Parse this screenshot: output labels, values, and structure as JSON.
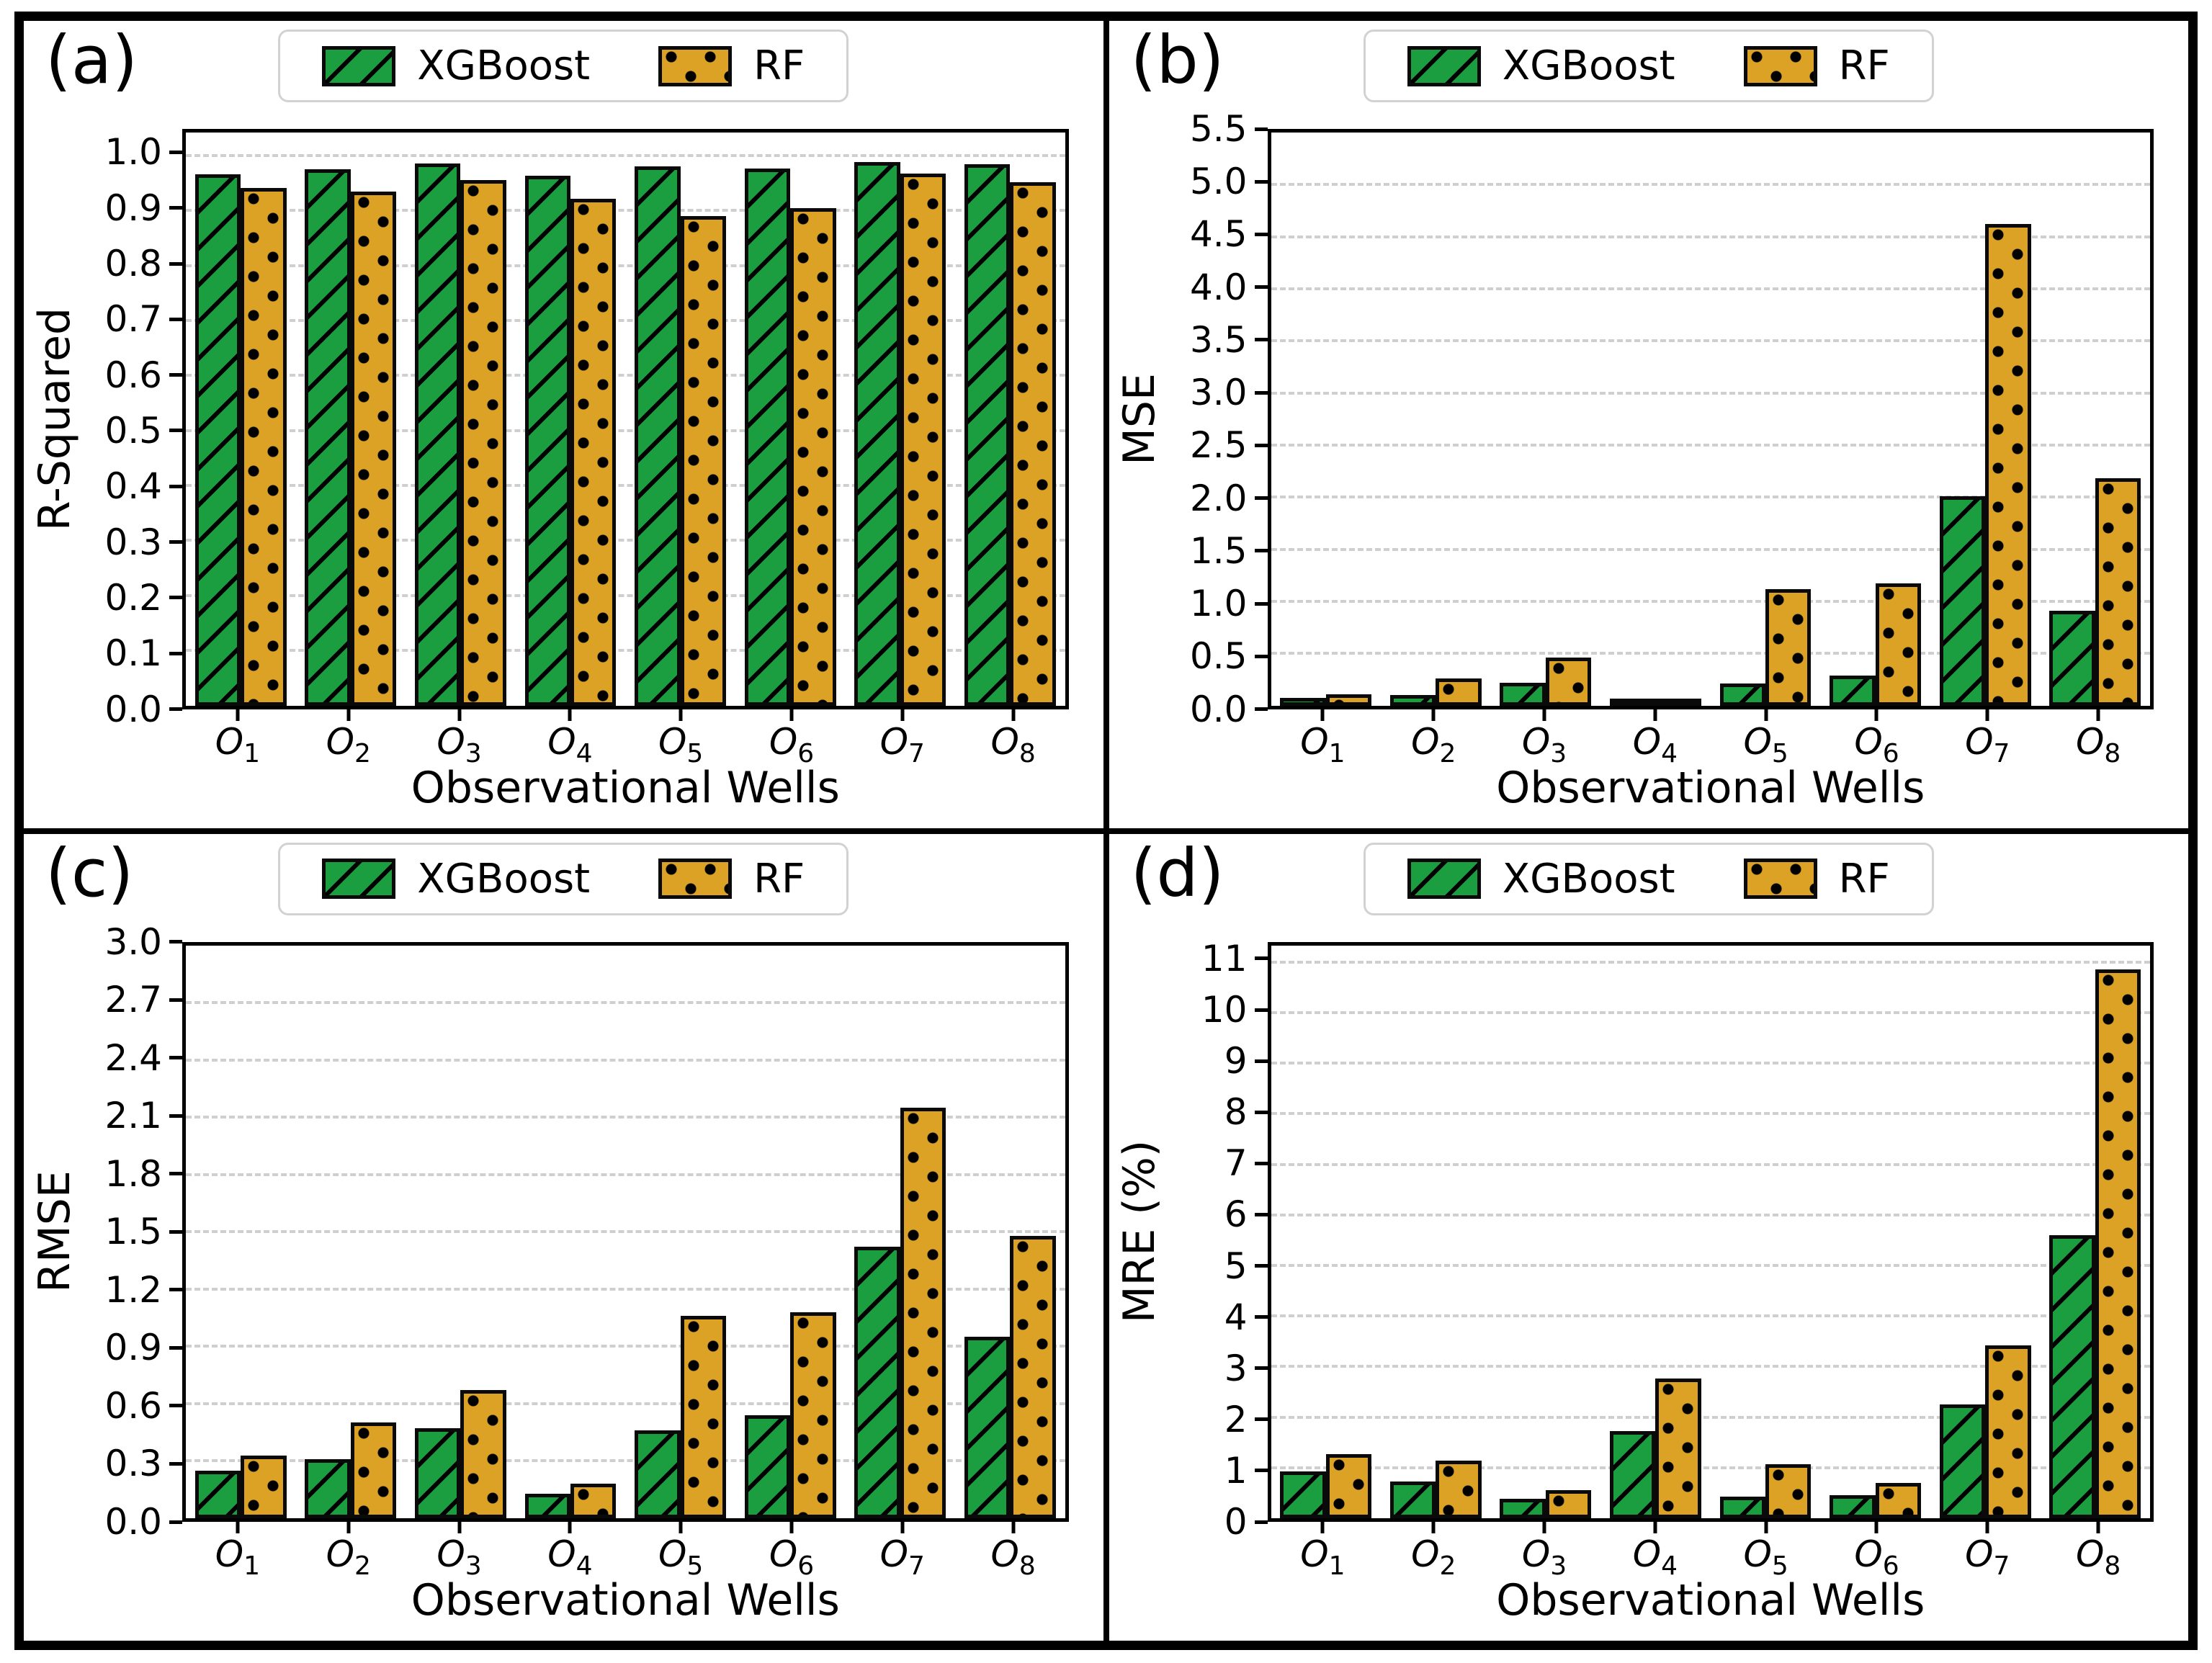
{
  "figure": {
    "background": "#ffffff",
    "border_color": "#000000",
    "colors": {
      "xgboost": "#1a9e40",
      "rf": "#dba226",
      "bar_edge": "#0a0a0a",
      "gridline": "#cfcfcf",
      "legend_border": "#d2d2d2"
    },
    "legend": {
      "items": [
        "XGBoost",
        "RF"
      ],
      "position": "top-center",
      "hatches": [
        "diagonal",
        "dots"
      ]
    }
  },
  "chart_data": [
    {
      "type": "bar",
      "panel_label": "(a)",
      "ylabel": "R-Squared",
      "xlabel": "Observational Wells",
      "categories": [
        "O1",
        "O2",
        "O3",
        "O4",
        "O5",
        "O6",
        "O7",
        "O8"
      ],
      "series": [
        {
          "name": "XGBoost",
          "values": [
            0.966,
            0.975,
            0.986,
            0.963,
            0.98,
            0.977,
            0.988,
            0.985
          ]
        },
        {
          "name": "RF",
          "values": [
            0.941,
            0.934,
            0.955,
            0.921,
            0.89,
            0.905,
            0.968,
            0.951
          ]
        }
      ],
      "yticks": {
        "min": 0,
        "max": 1.0,
        "step": 0.1,
        "decimals": 1
      },
      "ylim": [
        0,
        1.042
      ],
      "grid": true,
      "legend_position": "top-center"
    },
    {
      "type": "bar",
      "panel_label": "(b)",
      "ylabel": "MSE",
      "xlabel": "Observational Wells",
      "categories": [
        "O1",
        "O2",
        "O3",
        "O4",
        "O5",
        "O6",
        "O7",
        "O8"
      ],
      "series": [
        {
          "name": "XGBoost",
          "values": [
            0.07,
            0.1,
            0.22,
            0.02,
            0.21,
            0.29,
            2.01,
            0.91
          ]
        },
        {
          "name": "RF",
          "values": [
            0.11,
            0.26,
            0.46,
            0.04,
            1.12,
            1.17,
            4.62,
            2.18
          ]
        }
      ],
      "yticks": {
        "min": 0,
        "max": 5.5,
        "step": 0.5,
        "decimals": 1
      },
      "ylim": [
        0,
        5.5
      ],
      "grid": true,
      "legend_position": "top-center"
    },
    {
      "type": "bar",
      "panel_label": "(c)",
      "ylabel": "RMSE",
      "xlabel": "Observational Wells",
      "categories": [
        "O1",
        "O2",
        "O3",
        "O4",
        "O5",
        "O6",
        "O7",
        "O8"
      ],
      "series": [
        {
          "name": "XGBoost",
          "values": [
            0.25,
            0.31,
            0.47,
            0.13,
            0.46,
            0.54,
            1.42,
            0.95
          ]
        },
        {
          "name": "RF",
          "values": [
            0.33,
            0.5,
            0.67,
            0.18,
            1.06,
            1.08,
            2.15,
            1.48
          ]
        }
      ],
      "yticks": {
        "min": 0,
        "max": 3.0,
        "step": 0.3,
        "decimals": 1
      },
      "ylim": [
        0,
        3.0
      ],
      "grid": true,
      "legend_position": "top-center"
    },
    {
      "type": "bar",
      "panel_label": "(d)",
      "ylabel": "MRE (%)",
      "xlabel": "Observational Wells",
      "categories": [
        "O1",
        "O2",
        "O3",
        "O4",
        "O5",
        "O6",
        "O7",
        "O8"
      ],
      "series": [
        {
          "name": "XGBoost",
          "values": [
            0.92,
            0.73,
            0.38,
            1.73,
            0.43,
            0.45,
            2.25,
            5.6
          ]
        },
        {
          "name": "RF",
          "values": [
            1.27,
            1.14,
            0.55,
            2.77,
            1.07,
            0.7,
            3.42,
            10.85
          ]
        }
      ],
      "yticks": {
        "min": 0,
        "max": 11,
        "step": 1,
        "decimals": 0
      },
      "ylim": [
        0,
        11.33
      ],
      "grid": true,
      "legend_position": "top-center"
    }
  ]
}
